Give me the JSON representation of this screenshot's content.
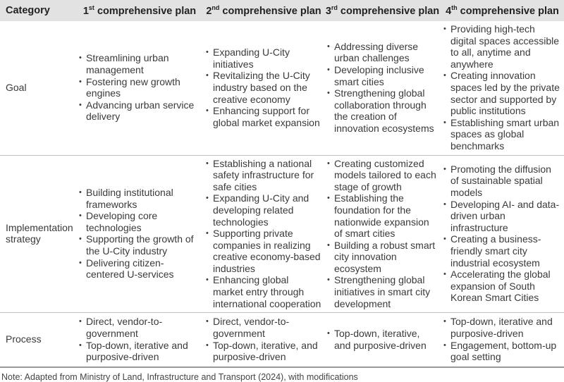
{
  "headers": [
    {
      "label": "Category"
    },
    {
      "num": "1",
      "sup": "st",
      "rest": " comprehensive plan"
    },
    {
      "num": "2",
      "sup": "nd",
      "rest": " comprehensive plan"
    },
    {
      "num": "3",
      "sup": "rd",
      "rest": " comprehensive plan"
    },
    {
      "num": "4",
      "sup": "th",
      "rest": " comprehensive plan"
    }
  ],
  "rows": [
    {
      "category": "Goal",
      "cells": [
        [
          "Streamlining urban management",
          "Fostering new growth engines",
          "Advancing urban service delivery"
        ],
        [
          "Expanding U-City initiatives",
          "Revitalizing the U-City industry based on the creative economy",
          "Enhancing support for global market expansion"
        ],
        [
          "Addressing diverse urban challenges",
          "Developing inclusive smart cities",
          "Strengthening global collaboration through the creation of innovation ecosystems"
        ],
        [
          "Providing high-tech digital spaces accessible to all, anytime and anywhere",
          "Creating innovation spaces led by the private sector and supported by public institutions",
          "Establishing smart urban spaces as global benchmarks"
        ]
      ]
    },
    {
      "category": "Implementation strategy",
      "cells": [
        [
          "Building institutional frameworks",
          "Developing core technologies",
          "Supporting the growth of the U-City industry",
          "Delivering citizen-centered U-services"
        ],
        [
          "Establishing a national safety infrastructure for safe cities",
          "Expanding U-City and developing related technologies",
          "Supporting private companies in realizing creative economy-based industries",
          "Enhancing global market entry through international cooperation"
        ],
        [
          "Creating customized models tailored to each stage of growth",
          "Establishing the foundation for the nationwide expansion of smart cities",
          "Building a robust smart city innovation ecosystem",
          "Strengthening global initiatives in smart city development"
        ],
        [
          "Promoting the diffusion of sustainable spatial models",
          "Developing AI- and data-driven urban infrastructure",
          "Creating a business-friendly smart city industrial ecosystem",
          "Accelerating the global expansion of South Korean Smart Cities"
        ]
      ]
    },
    {
      "category": "Process",
      "cells": [
        [
          "Direct, vendor-to-government",
          "Top-down, iterative and purposive-driven"
        ],
        [
          "Direct, vendor-to-government",
          "Top-down, iterative, and purposive-driven"
        ],
        [
          "Top-down, iterative, and purposive-driven"
        ],
        [
          "Top-down, iterative and purposive-driven",
          "Engagement, bottom-up goal setting"
        ]
      ]
    }
  ],
  "note": "Note: Adapted from Ministry of Land, Infrastructure and Transport (2024), with modifications"
}
